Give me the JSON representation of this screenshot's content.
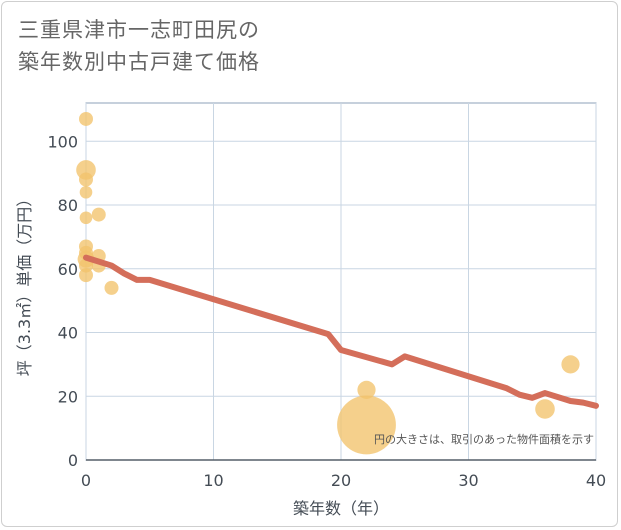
{
  "title": {
    "line1": "三重県津市一志町田尻の",
    "line2": "築年数別中古戸建て価格"
  },
  "chart_data": {
    "type": "scatter",
    "title": "三重県津市一志町田尻の築年数別中古戸建て価格",
    "xlabel": "築年数（年）",
    "ylabel": "坪（3.3㎡）単価（万円）",
    "xlim": [
      0,
      40
    ],
    "ylim": [
      0,
      112
    ],
    "xticks": [
      0,
      10,
      20,
      30,
      40
    ],
    "yticks": [
      0,
      20,
      40,
      60,
      80,
      100
    ],
    "grid": true,
    "note": "円の大きさは、取引のあった物件面積を示す",
    "colors": {
      "bubble": "#f2c36b",
      "trend": "#d46e5a",
      "grid": "#c9d6e3",
      "plot_border": "#8ea2b8"
    },
    "points": [
      {
        "x": 0,
        "y": 107,
        "size": 1
      },
      {
        "x": 0,
        "y": 91,
        "size": 1.4
      },
      {
        "x": 0,
        "y": 88,
        "size": 1
      },
      {
        "x": 0,
        "y": 84,
        "size": 0.9
      },
      {
        "x": 0,
        "y": 76,
        "size": 0.9
      },
      {
        "x": 0,
        "y": 67,
        "size": 1
      },
      {
        "x": 0,
        "y": 65,
        "size": 1
      },
      {
        "x": 0,
        "y": 63,
        "size": 1.2
      },
      {
        "x": 0,
        "y": 61,
        "size": 1
      },
      {
        "x": 0,
        "y": 58,
        "size": 1
      },
      {
        "x": 1,
        "y": 77,
        "size": 1
      },
      {
        "x": 1,
        "y": 64,
        "size": 1
      },
      {
        "x": 1,
        "y": 61,
        "size": 1
      },
      {
        "x": 2,
        "y": 54,
        "size": 1
      },
      {
        "x": 22,
        "y": 22,
        "size": 1.3
      },
      {
        "x": 22,
        "y": 11,
        "size": 4.2
      },
      {
        "x": 36,
        "y": 16,
        "size": 1.4
      },
      {
        "x": 38,
        "y": 30,
        "size": 1.3
      }
    ],
    "trend": {
      "x": [
        0,
        2,
        3,
        4,
        5,
        19,
        20,
        24,
        25,
        33,
        34,
        35,
        36,
        38,
        39,
        40
      ],
      "y": [
        63.5,
        61,
        58.5,
        56.5,
        56.5,
        39.5,
        34.5,
        30,
        32.5,
        22.5,
        20.5,
        19.5,
        21,
        18.5,
        18,
        17
      ]
    }
  }
}
